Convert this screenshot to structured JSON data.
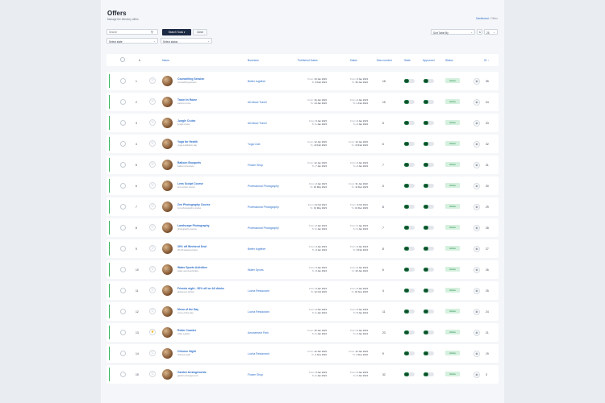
{
  "header": {
    "title": "Offers",
    "subtitle": "Manage the directory offers",
    "breadcrumb": [
      "Dashboard",
      "Offers"
    ]
  },
  "toolbar": {
    "search_placeholder": "Search",
    "search_tools_label": "Search Tools ▾",
    "clear_label": "Clear",
    "state_placeholder": "Select state",
    "status_placeholder": "Select status",
    "sort_label": "Sort Table By",
    "page_size": "25"
  },
  "columns": [
    "Name",
    "Business",
    "Published Dates",
    "Dates",
    "Max number",
    "State",
    "Approved",
    "Status",
    "ID ↑"
  ],
  "colors": {
    "accent": "#2c6ec9",
    "success": "#33b35a",
    "dark": "#1d2a44"
  },
  "rows": [
    {
      "num": "1",
      "name": "Counselling Session",
      "sub": "counselling-session",
      "business": "Better together",
      "pub_from": "10 Jan 2023",
      "pub_to": "9 Feb 2024",
      "from": "3 Jan 2023",
      "to": "26 Jan 2024",
      "views": "18",
      "status": "Active",
      "id": "35",
      "starred": false
    },
    {
      "num": "2",
      "name": "Travel in Rome",
      "sub": "travel-in-rome",
      "business": "All About Travel",
      "pub_from": "16 Jan 2023",
      "pub_to": "14 Jan 2024",
      "from": "2 Jan 2023",
      "to": "1 Feb 2024",
      "views": "15",
      "status": "Active",
      "id": "34",
      "starred": false
    },
    {
      "num": "3",
      "name": "Jungle Cruise",
      "sub": "jungle-cruise",
      "business": "All About Travel",
      "pub_from": "3 Jan 2023",
      "pub_to": "1 Jan 2024",
      "from": "2 Jan 2023",
      "to": "2 Jan 2024",
      "views": "5",
      "status": "Active",
      "id": "33",
      "starred": false
    },
    {
      "num": "4",
      "name": "Yoga for Health",
      "sub": "yoga-meditation-day",
      "business": "Yoga Club",
      "pub_from": "12 Jan 2023",
      "pub_to": "13 Feb 2024",
      "from": "12 Jan 2023",
      "to": "13 Feb 2024",
      "views": "6",
      "status": "Active",
      "id": "32",
      "starred": false
    },
    {
      "num": "5",
      "name": "Balloon Bouquets",
      "sub": "balloon-bouquets",
      "business": "Flower Shop",
      "pub_from": "12 Jan 2023",
      "pub_to": "7 Jan 2024",
      "from": "2 Jan 2023",
      "to": "2 Jan 2024",
      "views": "7",
      "status": "Active",
      "id": "31",
      "starred": false
    },
    {
      "num": "6",
      "name": "Lens Sculpt Course",
      "sub": "lens-sculpt-course",
      "business": "Professional Photography",
      "pub_from": "2 Jan 2023",
      "pub_to": "16 May 2024",
      "from": "31 Jan 2022",
      "to": "11 Dec 2023",
      "views": "5",
      "status": "Active",
      "id": "30",
      "starred": false
    },
    {
      "num": "7",
      "name": "Zen Photography Course",
      "sub": "zen-photography-course",
      "business": "Professional Photography",
      "pub_from": "11 Oct 2021",
      "pub_to": "31 May 2023",
      "from": "3 Oct 2021",
      "to": "13 Dec 2023",
      "views": "8",
      "status": "Active",
      "id": "29",
      "starred": false
    },
    {
      "num": "8",
      "name": "Landscape Photography",
      "sub": "photography-course",
      "business": "Professional Photography",
      "pub_from": "2 Jan 2023",
      "pub_to": "1 Jan 2024",
      "from": "1 Jan 2023",
      "to": "1 Jan 2024",
      "views": "7",
      "status": "Active",
      "id": "28",
      "starred": false
    },
    {
      "num": "9",
      "name": "30% off Weekend Deal",
      "sub": "30-off-weekend-deal",
      "business": "Better together",
      "pub_from": "4 Jan 2023",
      "pub_to": "4 Jan 2024",
      "from": "3 Jan 2023",
      "to": "9 Feb 2024",
      "views": "8",
      "status": "Active",
      "id": "27",
      "starred": false
    },
    {
      "num": "10",
      "name": "Water Sports Activities",
      "sub": "water-sports-activities",
      "business": "Water Sports",
      "pub_from": "3 Jan 2023",
      "pub_to": "3 Jan 2024",
      "from": "2 Jan 2023",
      "to": "23 Jan 2024",
      "views": "6",
      "status": "Active",
      "id": "26",
      "starred": false
    },
    {
      "num": "11",
      "name": "Friends night - 50% off on All drinks",
      "sub": "glasses-in-festive",
      "business": "Lucha Restaurant",
      "pub_from": "3 Jan 2023",
      "pub_to": "12 Oct 2023",
      "from": "2 Jan 2023",
      "to": "16 Nov 2023",
      "views": "4",
      "status": "Active",
      "id": "25",
      "starred": false
    },
    {
      "num": "12",
      "name": "Menu of the Day",
      "sub": "menu-of-the-day",
      "business": "Lucha Restaurant",
      "pub_from": "2 Jan 2023",
      "pub_to": "1 Jan 2024",
      "from": "2 Jan 2023",
      "to": "5 Jan 2024",
      "views": "11",
      "status": "Active",
      "id": "24",
      "starred": false
    },
    {
      "num": "13",
      "name": "Roller Coaster",
      "sub": "roller-coaster",
      "business": "Amusement Park",
      "pub_from": "15 Jan 2023",
      "pub_to": "1 Jan 2024",
      "from": "2 Jan 2023",
      "to": "2 Jan 2024",
      "views": "23",
      "status": "Active",
      "id": "21",
      "starred": true
    },
    {
      "num": "14",
      "name": "Chinese Night",
      "sub": "chinese-night",
      "business": "Lucha Restaurant",
      "pub_from": "12 Jan 2023",
      "pub_to": "1 Nov 2024",
      "from": "12 Jan 2023",
      "to": "3 Nov 2024",
      "views": "9",
      "status": "Active",
      "id": "19",
      "starred": false
    },
    {
      "num": "15",
      "name": "Garden Arrangements",
      "sub": "garden-arrangements",
      "business": "Flower Shop",
      "pub_from": "3 Jan 2023",
      "pub_to": "1 Jan 2024",
      "from": "2 Jan 2023",
      "to": "2 Jan 2024",
      "views": "32",
      "status": "Active",
      "id": "3",
      "starred": false
    }
  ]
}
